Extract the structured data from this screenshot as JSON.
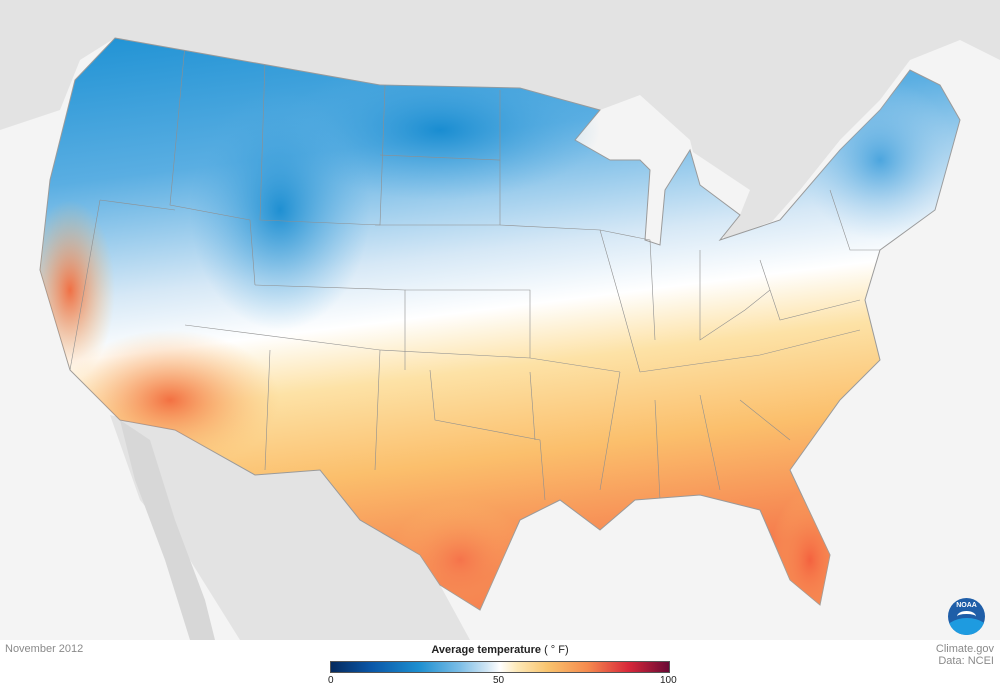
{
  "map": {
    "date": "November 2012",
    "legend": {
      "title": "Average temperature",
      "unit": "( ° F)",
      "min_label": "0",
      "mid_label": "50",
      "max_label": "100",
      "range": [
        0,
        100
      ],
      "colors": [
        "#062a5e",
        "#1d8fd0",
        "#ffffff",
        "#f9c46e",
        "#f58a4e",
        "#d8283a",
        "#6a0a35"
      ]
    },
    "credit": {
      "line1": "Climate.gov",
      "line2": "Data: NCEI"
    },
    "logo": {
      "text": "NOAA",
      "icon": "noaa-logo-icon"
    },
    "colors": {
      "cold": "#2a8fd2",
      "cool": "#a9d2ef",
      "neutral": "#f4f8fc",
      "warm": "#fbc97a",
      "hot": "#f26a46",
      "background_land": "#e3e3e3",
      "background_water": "#f4f4f4"
    }
  }
}
